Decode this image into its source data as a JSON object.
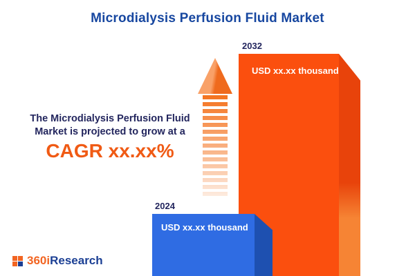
{
  "title": "Microdialysis Perfusion Fluid Market",
  "description": {
    "line1": "The Microdialysis Perfusion Fluid",
    "line2": "Market is projected to grow at a",
    "cagr": "CAGR xx.xx%"
  },
  "chart_data": {
    "type": "bar",
    "categories": [
      "2024",
      "2032"
    ],
    "values": [
      "USD xx.xx thousand",
      "USD xx.xx thousand"
    ],
    "title": "Microdialysis Perfusion Fluid Market",
    "xlabel": "",
    "ylabel": "",
    "annotation": "The Microdialysis Perfusion Fluid Market is projected to grow at a CAGR xx.xx%",
    "legend": false,
    "grid": false
  },
  "bars": [
    {
      "year": "2024",
      "value": "USD xx.xx thousand",
      "color": "#2f6ce3",
      "side_color": "#1e50b0"
    },
    {
      "year": "2032",
      "value": "USD xx.xx thousand",
      "color": "#fb4f0e",
      "side_color": "#e8430b"
    }
  ],
  "colors": {
    "title_blue": "#1747a0",
    "body_navy": "#23265e",
    "accent_orange": "#f05a14"
  },
  "logo": {
    "prefix": "360i",
    "suffix": "Research"
  }
}
